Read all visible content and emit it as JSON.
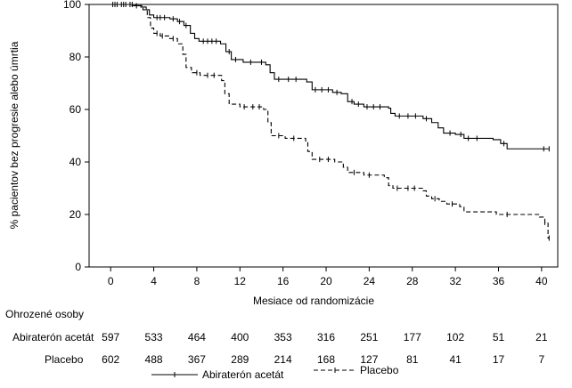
{
  "chart_data": {
    "type": "line",
    "step": true,
    "title": "",
    "xlabel": "Mesiace od randomizácie",
    "ylabel": "% pacientov bez progresie alebo úmrtia",
    "xlim": [
      -2,
      41.5
    ],
    "ylim": [
      0,
      100
    ],
    "xticks": [
      0,
      4,
      8,
      12,
      16,
      20,
      24,
      28,
      32,
      36,
      40
    ],
    "yticks": [
      0,
      20,
      40,
      60,
      80,
      100
    ],
    "grid": false,
    "legend_position": "bottom-center",
    "series": [
      {
        "name": "Abiraterón acetát",
        "line_style": "solid",
        "color": "#000000",
        "points": [
          [
            0,
            100
          ],
          [
            2,
            99.5
          ],
          [
            2.8,
            99
          ],
          [
            3.3,
            98
          ],
          [
            3.6,
            96
          ],
          [
            4,
            95
          ],
          [
            5.5,
            94.5
          ],
          [
            6.2,
            93.5
          ],
          [
            6.8,
            92
          ],
          [
            7.4,
            89
          ],
          [
            7.8,
            87
          ],
          [
            8.2,
            86
          ],
          [
            10.2,
            85
          ],
          [
            10.7,
            82
          ],
          [
            11.2,
            79
          ],
          [
            12.3,
            78
          ],
          [
            14.4,
            77
          ],
          [
            14.8,
            74
          ],
          [
            15.2,
            71.5
          ],
          [
            18.2,
            70.5
          ],
          [
            18.7,
            67.5
          ],
          [
            20.6,
            66.5
          ],
          [
            21.4,
            66
          ],
          [
            22,
            63
          ],
          [
            22.6,
            62
          ],
          [
            23.5,
            61
          ],
          [
            25.8,
            60.5
          ],
          [
            26,
            58.5
          ],
          [
            26.4,
            57.5
          ],
          [
            29,
            56.5
          ],
          [
            29.8,
            55
          ],
          [
            30.4,
            53
          ],
          [
            30.9,
            51
          ],
          [
            32,
            50.5
          ],
          [
            32.8,
            49
          ],
          [
            35.5,
            48.5
          ],
          [
            36.2,
            47
          ],
          [
            36.8,
            45
          ],
          [
            40.7,
            45
          ]
        ],
        "censor_marks": [
          0.2,
          0.6,
          1,
          1.4,
          1.8,
          2.4,
          4.3,
          4.6,
          5,
          5.8,
          6.4,
          7,
          8.6,
          9,
          9.4,
          9.8,
          11,
          11.6,
          13,
          14,
          15.6,
          16.5,
          17.2,
          19,
          19.6,
          20.2,
          21,
          22.4,
          23,
          23.8,
          24.4,
          25,
          26.8,
          27.6,
          28.3,
          29.3,
          31.5,
          32.5,
          33.2,
          34,
          36.5,
          40.2,
          40.7
        ]
      },
      {
        "name": "Placebo",
        "line_style": "dashed",
        "color": "#000000",
        "points": [
          [
            0,
            100
          ],
          [
            2.3,
            99.5
          ],
          [
            3,
            98
          ],
          [
            3.4,
            95
          ],
          [
            3.7,
            91
          ],
          [
            4,
            89
          ],
          [
            4.6,
            88
          ],
          [
            5.4,
            87
          ],
          [
            6.2,
            85
          ],
          [
            6.7,
            81
          ],
          [
            7,
            76
          ],
          [
            7.5,
            74
          ],
          [
            8.3,
            73
          ],
          [
            10.3,
            71
          ],
          [
            10.6,
            66
          ],
          [
            11,
            62
          ],
          [
            12,
            61
          ],
          [
            14.2,
            60
          ],
          [
            14.6,
            55
          ],
          [
            14.9,
            50
          ],
          [
            16.2,
            49
          ],
          [
            18.1,
            48
          ],
          [
            18.3,
            44
          ],
          [
            18.7,
            41
          ],
          [
            20.8,
            40
          ],
          [
            21.6,
            38
          ],
          [
            22,
            36
          ],
          [
            23.5,
            35
          ],
          [
            25.4,
            34
          ],
          [
            25.8,
            31
          ],
          [
            26.2,
            30
          ],
          [
            29,
            29
          ],
          [
            29.3,
            27
          ],
          [
            29.8,
            26
          ],
          [
            30.5,
            25
          ],
          [
            31.2,
            24
          ],
          [
            32.4,
            23
          ],
          [
            32.8,
            21
          ],
          [
            35.8,
            20
          ],
          [
            39.8,
            19
          ],
          [
            40.3,
            17
          ],
          [
            40.6,
            11
          ],
          [
            40.7,
            11
          ]
        ],
        "censor_marks": [
          0.4,
          1.2,
          2,
          4.3,
          4.8,
          5.8,
          8,
          9,
          9.6,
          12.4,
          13.2,
          13.8,
          15.6,
          17,
          19.4,
          20.2,
          22.6,
          24,
          26.6,
          27.6,
          28.2,
          30.1,
          31.7,
          36.8,
          40.3,
          40.7
        ]
      }
    ],
    "risk_table": {
      "title": "Ohrozené osoby",
      "rows": [
        {
          "label": "Abiraterón acetát",
          "values": [
            "597",
            "533",
            "464",
            "400",
            "353",
            "316",
            "251",
            "177",
            "102",
            "51",
            "21"
          ]
        },
        {
          "label": "Placebo",
          "values": [
            "602",
            "488",
            "367",
            "289",
            "214",
            "168",
            "127",
            "81",
            "41",
            "17",
            "7"
          ]
        }
      ]
    }
  }
}
